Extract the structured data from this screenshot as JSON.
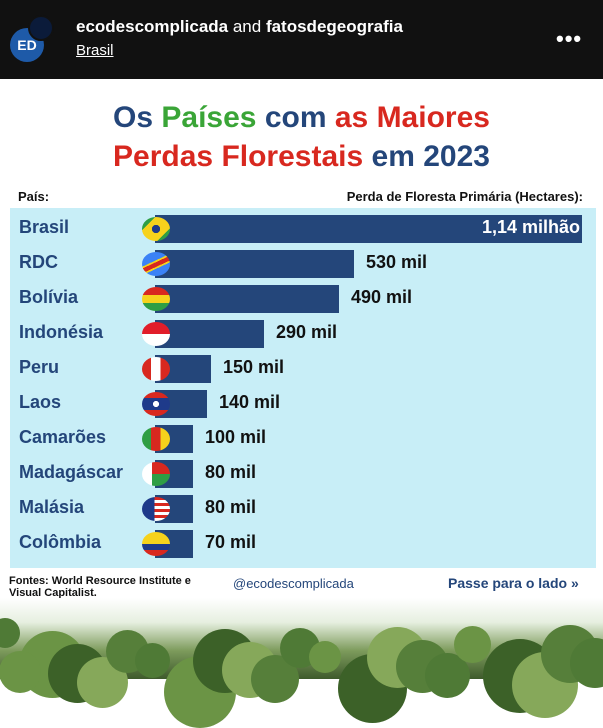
{
  "post_header": {
    "avatar_text": "ED",
    "account": "ecodescomplicada",
    "connector": " and ",
    "collaborator": "fatosdegeografia",
    "location": "Brasil",
    "menu_icon": "more-dots-icon"
  },
  "infographic": {
    "title_line1_a": "Os ",
    "title_line1_b": "Países",
    "title_line1_c": " com ",
    "title_line1_d": "as Maiores",
    "title_line2_a": "Perdas Florestais",
    "title_line2_b": " em 2023",
    "col_left": "País:",
    "col_right": "Perda de Floresta Primária (Hectares):",
    "source": "Fontes: World Resource Institute e Visual Capitalist.",
    "handle": "@ecodescomplicada",
    "swipe": "Passe para o lado",
    "swipe_icon": "double-chevron-right-icon",
    "colors": {
      "navy": "#24467a",
      "green": "#3aa537",
      "red": "#d8281f",
      "panel": "#c8eef7"
    }
  },
  "chart_data": {
    "type": "bar",
    "orientation": "horizontal",
    "categories": [
      "Brasil",
      "RDC",
      "Bolívia",
      "Indonésia",
      "Peru",
      "Laos",
      "Camarões",
      "Madagáscar",
      "Malásia",
      "Colômbia"
    ],
    "values": [
      1140000,
      530000,
      490000,
      290000,
      150000,
      140000,
      100000,
      80000,
      80000,
      70000
    ],
    "labels": [
      "1,14 milhão",
      "530 mil",
      "490 mil",
      "290 mil",
      "150 mil",
      "140 mil",
      "100 mil",
      "80 mil",
      "80 mil",
      "70 mil"
    ],
    "xlabel": "Perda de Floresta Primária (Hectares):",
    "ylabel": "País:",
    "xlim": [
      0,
      1140000
    ],
    "grid": false
  }
}
